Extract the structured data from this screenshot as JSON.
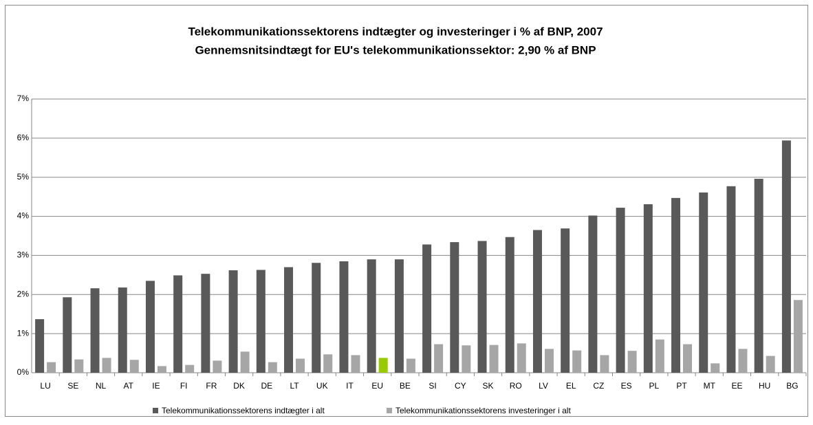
{
  "chart_data": {
    "type": "bar",
    "title": "Telekommunikationssektorens indtægter og investeringer i % af BNP, 2007",
    "subtitle": "Gennemsnitsindtægt for EU's telekommunikationssektor: 2,90 % af BNP",
    "categories": [
      "LU",
      "SE",
      "NL",
      "AT",
      "IE",
      "FI",
      "FR",
      "DK",
      "DE",
      "LT",
      "UK",
      "IT",
      "EU",
      "BE",
      "SI",
      "CY",
      "SK",
      "RO",
      "LV",
      "EL",
      "CZ",
      "ES",
      "PL",
      "PT",
      "MT",
      "EE",
      "HU",
      "BG"
    ],
    "series": [
      {
        "name": "Telekommunikationssektorens indtægter i alt",
        "color": "#595959",
        "values": [
          1.37,
          1.93,
          2.16,
          2.18,
          2.35,
          2.49,
          2.53,
          2.62,
          2.63,
          2.7,
          2.81,
          2.85,
          2.9,
          2.9,
          3.28,
          3.34,
          3.37,
          3.47,
          3.65,
          3.69,
          4.02,
          4.22,
          4.31,
          4.47,
          4.61,
          4.77,
          4.96,
          5.94
        ]
      },
      {
        "name": "Telekommunikationssektorens investeringer i alt",
        "color": "#a6a6a6",
        "colors": [
          "#a6a6a6",
          "#a6a6a6",
          "#a6a6a6",
          "#a6a6a6",
          "#a6a6a6",
          "#a6a6a6",
          "#a6a6a6",
          "#a6a6a6",
          "#a6a6a6",
          "#a6a6a6",
          "#a6a6a6",
          "#a6a6a6",
          "#99cc00",
          "#a6a6a6",
          "#a6a6a6",
          "#a6a6a6",
          "#a6a6a6",
          "#a6a6a6",
          "#a6a6a6",
          "#a6a6a6",
          "#a6a6a6",
          "#a6a6a6",
          "#a6a6a6",
          "#a6a6a6",
          "#a6a6a6",
          "#a6a6a6",
          "#a6a6a6",
          "#a6a6a6"
        ],
        "values": [
          0.27,
          0.34,
          0.38,
          0.33,
          0.17,
          0.2,
          0.31,
          0.54,
          0.27,
          0.36,
          0.47,
          0.45,
          0.38,
          0.36,
          0.73,
          0.7,
          0.71,
          0.75,
          0.61,
          0.57,
          0.45,
          0.56,
          0.85,
          0.73,
          0.24,
          0.61,
          0.43,
          1.86
        ]
      }
    ],
    "ylim": [
      0,
      7
    ],
    "yticks": [
      {
        "value": 0,
        "label": "0%"
      },
      {
        "value": 1,
        "label": "1%"
      },
      {
        "value": 2,
        "label": "2%"
      },
      {
        "value": 3,
        "label": "3%"
      },
      {
        "value": 4,
        "label": "4%"
      },
      {
        "value": 5,
        "label": "5%"
      },
      {
        "value": 6,
        "label": "6%"
      },
      {
        "value": 7,
        "label": "7%"
      }
    ],
    "grid": true,
    "legend": "bottom"
  }
}
